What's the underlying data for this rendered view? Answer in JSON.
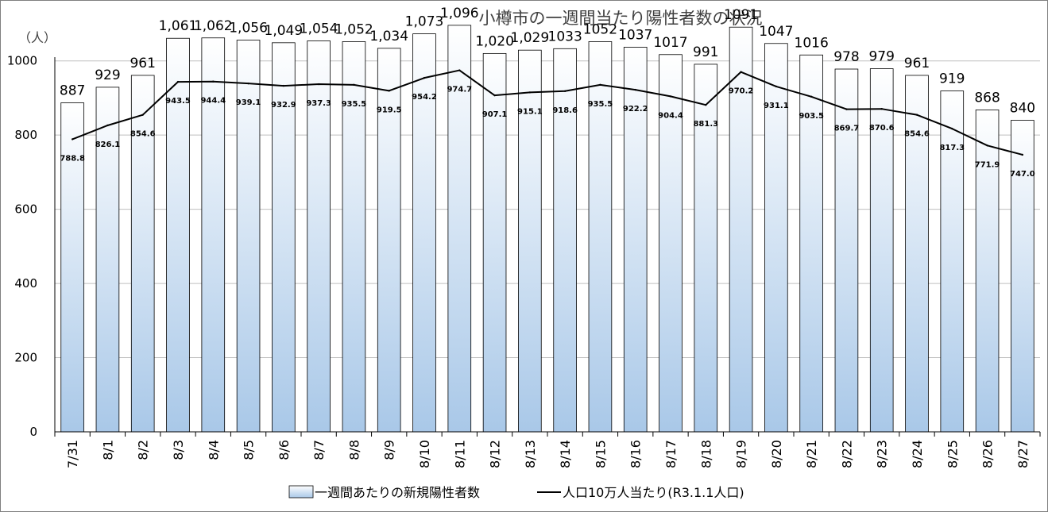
{
  "chart_data": {
    "type": "bar",
    "title": "小樽市の一週間当たり陽性者数の状況",
    "unit_label": "（人）",
    "categories": [
      "7/31",
      "8/1",
      "8/2",
      "8/3",
      "8/4",
      "8/5",
      "8/6",
      "8/7",
      "8/8",
      "8/9",
      "8/10",
      "8/11",
      "8/12",
      "8/13",
      "8/14",
      "8/15",
      "8/16",
      "8/17",
      "8/18",
      "8/19",
      "8/20",
      "8/21",
      "8/22",
      "8/23",
      "8/24",
      "8/25",
      "8/26",
      "8/27"
    ],
    "ylim": [
      0,
      1100
    ],
    "yticks": [
      0,
      200,
      400,
      600,
      800,
      1000
    ],
    "grid": true,
    "legend_position": "bottom",
    "series": [
      {
        "name": "一週間あたりの新規陽性者数",
        "kind": "bar",
        "values": [
          887,
          929,
          961,
          1061,
          1062,
          1056,
          1049,
          1054,
          1052,
          1034,
          1073,
          1096,
          1020,
          1029,
          1033,
          1052,
          1037,
          1017,
          991,
          1091,
          1047,
          1016,
          978,
          979,
          961,
          919,
          868,
          840
        ],
        "labels": [
          "887",
          "929",
          "961",
          "1,061",
          "1,062",
          "1,056",
          "1,049",
          "1,054",
          "1,052",
          "1,034",
          "1,073",
          "1,096",
          "1,020",
          "1,029",
          "1033",
          "1052",
          "1037",
          "1017",
          "991",
          "1091",
          "1047",
          "1016",
          "978",
          "979",
          "961",
          "919",
          "868",
          "840"
        ]
      },
      {
        "name": "人口10万人当たり(R3.1.1人口)",
        "kind": "line",
        "values": [
          788.8,
          826.1,
          854.6,
          943.5,
          944.4,
          939.1,
          932.9,
          937.3,
          935.5,
          919.5,
          954.2,
          974.7,
          907.1,
          915.1,
          918.6,
          935.5,
          922.2,
          904.4,
          881.3,
          970.2,
          931.1,
          903.5,
          869.7,
          870.6,
          854.6,
          817.3,
          771.9,
          747.0
        ],
        "labels": [
          "788.8",
          "826.1",
          "854.6",
          "943.5",
          "944.4",
          "939.1",
          "932.9",
          "937.3",
          "935.5",
          "919.5",
          "954.2",
          "974.7",
          "907.1",
          "915.1",
          "918.6",
          "935.5",
          "922.2",
          "904.4",
          "881.3",
          "970.2",
          "931.1",
          "903.5",
          "869.7",
          "870.6",
          "854.6",
          "817.3",
          "771.9",
          "747.0"
        ]
      }
    ]
  },
  "colors": {
    "bar_top": "#ffffff",
    "bar_bottom": "#a9c8e8",
    "bar_stroke": "#000000",
    "line": "#000000",
    "grid": "#bfbfbf"
  }
}
